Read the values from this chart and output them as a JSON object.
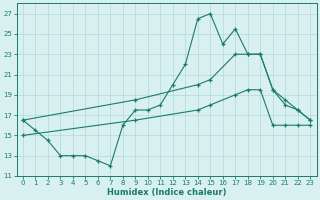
{
  "line_spike_x": [
    0,
    1,
    2,
    3,
    4,
    5,
    6,
    7,
    8,
    9,
    10,
    11,
    12,
    13,
    14,
    15,
    16,
    17,
    18,
    19,
    20,
    21,
    22,
    23
  ],
  "line_spike_y": [
    16.5,
    15.5,
    14.5,
    13.0,
    13.0,
    13.0,
    12.5,
    12.0,
    16.0,
    17.5,
    17.5,
    18.0,
    20.0,
    22.0,
    26.5,
    27.0,
    24.0,
    25.5,
    23.0,
    23.0,
    19.5,
    18.0,
    17.5,
    16.5
  ],
  "line_upper_x": [
    0,
    9,
    14,
    15,
    17,
    18,
    19,
    20,
    21,
    22,
    23
  ],
  "line_upper_y": [
    16.5,
    18.5,
    20.0,
    20.5,
    23.0,
    23.0,
    23.0,
    19.5,
    18.5,
    17.5,
    16.5
  ],
  "line_lower_x": [
    0,
    9,
    14,
    15,
    17,
    18,
    19,
    20,
    21,
    22,
    23
  ],
  "line_lower_y": [
    15.0,
    16.5,
    17.5,
    18.0,
    19.0,
    19.5,
    19.5,
    16.0,
    16.0,
    16.0,
    16.0
  ],
  "bg_color": "#d9f0f0",
  "line_color": "#1a7a6e",
  "grid_color": "#b0d8d8",
  "xlabel": "Humidex (Indice chaleur)",
  "ylim": [
    11,
    28
  ],
  "xlim": [
    -0.5,
    23.5
  ],
  "yticks": [
    11,
    13,
    15,
    17,
    19,
    21,
    23,
    25,
    27
  ],
  "xticks": [
    0,
    1,
    2,
    3,
    4,
    5,
    6,
    7,
    8,
    9,
    10,
    11,
    12,
    13,
    14,
    15,
    16,
    17,
    18,
    19,
    20,
    21,
    22,
    23
  ]
}
